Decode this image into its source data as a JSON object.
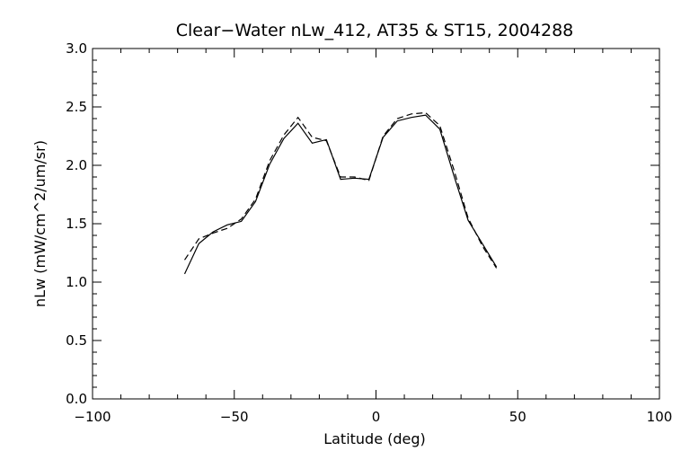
{
  "chart_data": {
    "type": "line",
    "title": "Clear−Water nLw_412, AT35 & ST15, 2004288",
    "xlabel": "Latitude (deg)",
    "ylabel": "nLw (mW/cm^2/um/sr)",
    "xlim": [
      -100,
      100
    ],
    "ylim": [
      0.0,
      3.0
    ],
    "x_ticks": [
      -100,
      -50,
      0,
      50,
      100
    ],
    "x_tick_labels": [
      "−100",
      "−50",
      "0",
      "50",
      "100"
    ],
    "y_ticks": [
      0.0,
      0.5,
      1.0,
      1.5,
      2.0,
      2.5,
      3.0
    ],
    "y_tick_labels": [
      "0.0",
      "0.5",
      "1.0",
      "1.5",
      "2.0",
      "2.5",
      "3.0"
    ],
    "x_minor_step": 10,
    "y_minor_step": 0.1,
    "grid": false,
    "series": [
      {
        "style": "solid",
        "x": [
          -67.5,
          -62.5,
          -57.5,
          -52.5,
          -47.5,
          -42.5,
          -37.5,
          -32.5,
          -27.5,
          -22.5,
          -17.5,
          -12.5,
          -7.5,
          -2.5,
          2.5,
          7.5,
          12.5,
          17.5,
          22.5,
          27.5,
          32.5,
          37.5,
          42.5
        ],
        "y": [
          1.07,
          1.33,
          1.43,
          1.49,
          1.52,
          1.69,
          2.01,
          2.23,
          2.36,
          2.19,
          2.22,
          1.88,
          1.89,
          1.88,
          2.24,
          2.38,
          2.41,
          2.43,
          2.31,
          1.91,
          1.53,
          1.33,
          1.13
        ]
      },
      {
        "style": "dashed",
        "x": [
          -67.5,
          -62.5,
          -57.5,
          -52.5,
          -47.5,
          -42.5,
          -37.5,
          -32.5,
          -27.5,
          -22.5,
          -17.5,
          -12.5,
          -7.5,
          -2.5,
          2.5,
          7.5,
          12.5,
          17.5,
          22.5,
          27.5,
          32.5,
          37.5,
          42.5
        ],
        "y": [
          1.19,
          1.37,
          1.42,
          1.46,
          1.54,
          1.71,
          2.04,
          2.26,
          2.41,
          2.24,
          2.21,
          1.9,
          1.9,
          1.87,
          2.25,
          2.4,
          2.44,
          2.45,
          2.34,
          1.96,
          1.55,
          1.31,
          1.12
        ]
      }
    ]
  }
}
